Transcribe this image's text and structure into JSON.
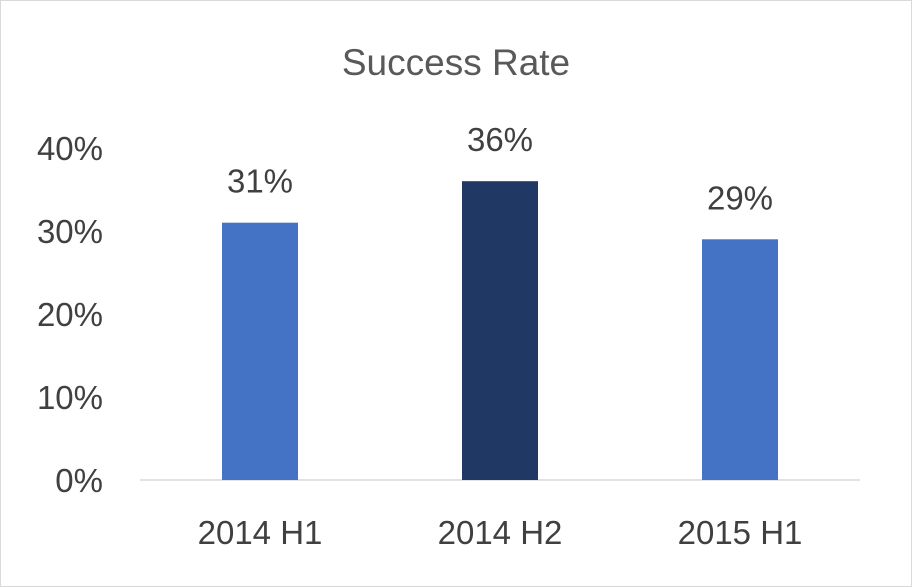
{
  "chart_data": {
    "type": "bar",
    "title": "Success Rate",
    "categories": [
      "2014 H1",
      "2014 H2",
      "2015 H1"
    ],
    "values": [
      31,
      36,
      29
    ],
    "data_labels": [
      "31%",
      "36%",
      "29%"
    ],
    "bar_colors": [
      "#4472c4",
      "#203864",
      "#4472c4"
    ],
    "ylim": [
      0,
      40
    ],
    "yticks": [
      0,
      10,
      20,
      30,
      40
    ],
    "ytick_labels": [
      "0%",
      "10%",
      "20%",
      "30%",
      "40%"
    ],
    "xlabel": "",
    "ylabel": "",
    "grid": false,
    "legend": "none"
  }
}
